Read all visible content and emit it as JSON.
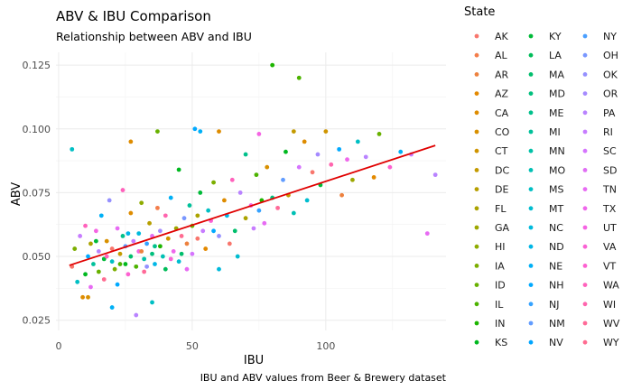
{
  "chart_data": {
    "type": "scatter",
    "title": "ABV & IBU Comparison",
    "subtitle": "Relationship between ABV and IBU",
    "xlabel": "IBU",
    "ylabel": "ABV",
    "caption": "IBU and ABV values from Beer & Brewery dataset",
    "xlim": [
      -1,
      145
    ],
    "ylim": [
      0.021,
      0.13
    ],
    "x_ticks": [
      0,
      50,
      100
    ],
    "y_ticks": [
      0.025,
      0.05,
      0.075,
      0.1,
      0.125
    ],
    "y_tick_labels": [
      "0.025",
      "0.050",
      "0.075",
      "0.100",
      "0.125"
    ],
    "grid": true,
    "legend": {
      "title": "State",
      "placement": "right",
      "entries": [
        {
          "name": "AK",
          "color": "#F8766D"
        },
        {
          "name": "AL",
          "color": "#F47D4A"
        },
        {
          "name": "AR",
          "color": "#ED813E"
        },
        {
          "name": "AZ",
          "color": "#E38900"
        },
        {
          "name": "CA",
          "color": "#DE8C00"
        },
        {
          "name": "CO",
          "color": "#D89000"
        },
        {
          "name": "CT",
          "color": "#CF9400"
        },
        {
          "name": "DC",
          "color": "#C49A00"
        },
        {
          "name": "DE",
          "color": "#B79F00"
        },
        {
          "name": "FL",
          "color": "#ABA300"
        },
        {
          "name": "GA",
          "color": "#9DA700"
        },
        {
          "name": "HI",
          "color": "#8EAB00"
        },
        {
          "name": "IA",
          "color": "#7CAE00"
        },
        {
          "name": "ID",
          "color": "#68B100"
        },
        {
          "name": "IL",
          "color": "#4DB300"
        },
        {
          "name": "IN",
          "color": "#1DB500"
        },
        {
          "name": "KS",
          "color": "#00B81F"
        },
        {
          "name": "KY",
          "color": "#00BA38"
        },
        {
          "name": "LA",
          "color": "#00BC59"
        },
        {
          "name": "MA",
          "color": "#00BE6C"
        },
        {
          "name": "MD",
          "color": "#00BF7D"
        },
        {
          "name": "ME",
          "color": "#00C08B"
        },
        {
          "name": "MI",
          "color": "#00C19A"
        },
        {
          "name": "MN",
          "color": "#00C1A7"
        },
        {
          "name": "MO",
          "color": "#00C0B4"
        },
        {
          "name": "MS",
          "color": "#00BFC4"
        },
        {
          "name": "MT",
          "color": "#00BDD0"
        },
        {
          "name": "NC",
          "color": "#00BADC"
        },
        {
          "name": "ND",
          "color": "#00B6E6"
        },
        {
          "name": "NE",
          "color": "#00B0F6"
        },
        {
          "name": "NH",
          "color": "#00A9FF"
        },
        {
          "name": "NJ",
          "color": "#35A2FF"
        },
        {
          "name": "NM",
          "color": "#619CFF"
        },
        {
          "name": "NV",
          "color": "#00A5FF"
        },
        {
          "name": "NY",
          "color": "#4A9FFF"
        },
        {
          "name": "OH",
          "color": "#7997FF"
        },
        {
          "name": "OK",
          "color": "#9590FF"
        },
        {
          "name": "OR",
          "color": "#A58AFF"
        },
        {
          "name": "PA",
          "color": "#B983FF"
        },
        {
          "name": "RI",
          "color": "#C77CFF"
        },
        {
          "name": "SC",
          "color": "#D575FE"
        },
        {
          "name": "SD",
          "color": "#E06EF4"
        },
        {
          "name": "TN",
          "color": "#E76BF3"
        },
        {
          "name": "TX",
          "color": "#EF67EB"
        },
        {
          "name": "UT",
          "color": "#F564E3"
        },
        {
          "name": "VA",
          "color": "#FA62D4"
        },
        {
          "name": "VT",
          "color": "#FD61D1"
        },
        {
          "name": "WA",
          "color": "#FF62BC"
        },
        {
          "name": "WI",
          "color": "#FF65AE"
        },
        {
          "name": "WV",
          "color": "#FF6A98"
        },
        {
          "name": "WY",
          "color": "#FF6C91"
        }
      ]
    },
    "regression": {
      "color": "#E00000",
      "x": [
        4,
        141
      ],
      "y": [
        0.0465,
        0.0935
      ]
    },
    "points": [
      [
        5,
        0.046,
        "#F8766D"
      ],
      [
        6,
        0.053,
        "#7CAE00"
      ],
      [
        7,
        0.04,
        "#00BFC4"
      ],
      [
        8,
        0.058,
        "#C77CFF"
      ],
      [
        9,
        0.034,
        "#DE8C00"
      ],
      [
        10,
        0.043,
        "#00B81F"
      ],
      [
        10,
        0.062,
        "#FF62BC"
      ],
      [
        11,
        0.05,
        "#00A9FF"
      ],
      [
        12,
        0.055,
        "#ABA300"
      ],
      [
        12,
        0.038,
        "#E76BF3"
      ],
      [
        13,
        0.047,
        "#00C19A"
      ],
      [
        14,
        0.06,
        "#F564E3"
      ],
      [
        15,
        0.044,
        "#68B100"
      ],
      [
        15,
        0.052,
        "#B983FF"
      ],
      [
        16,
        0.066,
        "#00B0F6"
      ],
      [
        17,
        0.041,
        "#FF6C91"
      ],
      [
        17,
        0.049,
        "#00BA38"
      ],
      [
        18,
        0.056,
        "#D89000"
      ],
      [
        19,
        0.072,
        "#9590FF"
      ],
      [
        20,
        0.048,
        "#00BFC4"
      ],
      [
        20,
        0.053,
        "#F8766D"
      ],
      [
        21,
        0.045,
        "#7CAE00"
      ],
      [
        22,
        0.061,
        "#E76BF3"
      ],
      [
        22,
        0.039,
        "#00A9FF"
      ],
      [
        23,
        0.051,
        "#C49A00"
      ],
      [
        24,
        0.058,
        "#00C08B"
      ],
      [
        24,
        0.076,
        "#FF62BC"
      ],
      [
        25,
        0.047,
        "#00B81F"
      ],
      [
        25,
        0.054,
        "#619CFF"
      ],
      [
        26,
        0.043,
        "#FD61D1"
      ],
      [
        27,
        0.05,
        "#00BE6C"
      ],
      [
        27,
        0.067,
        "#DE8C00"
      ],
      [
        28,
        0.056,
        "#C77CFF"
      ],
      [
        29,
        0.046,
        "#4DB300"
      ],
      [
        30,
        0.059,
        "#00BADC"
      ],
      [
        30,
        0.052,
        "#F564E3"
      ],
      [
        31,
        0.071,
        "#8EAB00"
      ],
      [
        32,
        0.049,
        "#00C1A7"
      ],
      [
        32,
        0.044,
        "#FF6A98"
      ],
      [
        33,
        0.055,
        "#35A2FF"
      ],
      [
        34,
        0.063,
        "#B79F00"
      ],
      [
        35,
        0.051,
        "#00BF7D"
      ],
      [
        35,
        0.058,
        "#E06EF4"
      ],
      [
        36,
        0.047,
        "#00B6E6"
      ],
      [
        37,
        0.069,
        "#F47D4A"
      ],
      [
        38,
        0.054,
        "#1DB500"
      ],
      [
        38,
        0.06,
        "#A58AFF"
      ],
      [
        39,
        0.05,
        "#00C0B4"
      ],
      [
        40,
        0.066,
        "#FF65AE"
      ],
      [
        40,
        0.045,
        "#00BC59"
      ],
      [
        41,
        0.057,
        "#CF9400"
      ],
      [
        42,
        0.073,
        "#00B0F6"
      ],
      [
        43,
        0.052,
        "#EF67EB"
      ],
      [
        44,
        0.061,
        "#9DA700"
      ],
      [
        45,
        0.048,
        "#00BDD0"
      ],
      [
        45,
        0.084,
        "#00B81F"
      ],
      [
        46,
        0.058,
        "#FF6C91"
      ],
      [
        47,
        0.065,
        "#7997FF"
      ],
      [
        48,
        0.055,
        "#ED813E"
      ],
      [
        49,
        0.07,
        "#00C19A"
      ],
      [
        50,
        0.051,
        "#D575FE"
      ],
      [
        50,
        0.062,
        "#68B100"
      ],
      [
        51,
        0.1,
        "#00A9FF"
      ],
      [
        52,
        0.057,
        "#F8766D"
      ],
      [
        53,
        0.075,
        "#00BA38"
      ],
      [
        54,
        0.06,
        "#C77CFF"
      ],
      [
        55,
        0.053,
        "#E38900"
      ],
      [
        56,
        0.068,
        "#00BFC4"
      ],
      [
        57,
        0.064,
        "#FA62D4"
      ],
      [
        58,
        0.079,
        "#7CAE00"
      ],
      [
        60,
        0.045,
        "#00BADC"
      ],
      [
        60,
        0.058,
        "#9590FF"
      ],
      [
        62,
        0.072,
        "#DE8C00"
      ],
      [
        63,
        0.066,
        "#00B6E6"
      ],
      [
        65,
        0.08,
        "#FF62BC"
      ],
      [
        66,
        0.06,
        "#00BE6C"
      ],
      [
        68,
        0.075,
        "#B983FF"
      ],
      [
        70,
        0.065,
        "#ABA300"
      ],
      [
        70,
        0.09,
        "#00C08B"
      ],
      [
        72,
        0.07,
        "#F564E3"
      ],
      [
        74,
        0.082,
        "#4DB300"
      ],
      [
        75,
        0.068,
        "#35A2FF"
      ],
      [
        77,
        0.063,
        "#E76BF3"
      ],
      [
        78,
        0.085,
        "#D89000"
      ],
      [
        80,
        0.073,
        "#00BF7D"
      ],
      [
        80,
        0.125,
        "#1DB500"
      ],
      [
        82,
        0.069,
        "#FF6A98"
      ],
      [
        84,
        0.08,
        "#619CFF"
      ],
      [
        85,
        0.091,
        "#00B81F"
      ],
      [
        86,
        0.074,
        "#C49A00"
      ],
      [
        88,
        0.067,
        "#00C0B4"
      ],
      [
        90,
        0.12,
        "#4DB300"
      ],
      [
        90,
        0.085,
        "#D575FE"
      ],
      [
        92,
        0.095,
        "#DE8C00"
      ],
      [
        93,
        0.072,
        "#00BDD0"
      ],
      [
        95,
        0.083,
        "#F8766D"
      ],
      [
        97,
        0.09,
        "#A58AFF"
      ],
      [
        98,
        0.078,
        "#00BA38"
      ],
      [
        100,
        0.099,
        "#CF9400"
      ],
      [
        102,
        0.086,
        "#FF65AE"
      ],
      [
        105,
        0.092,
        "#00A9FF"
      ],
      [
        106,
        0.074,
        "#ED813E"
      ],
      [
        108,
        0.088,
        "#EF67EB"
      ],
      [
        110,
        0.08,
        "#9DA700"
      ],
      [
        112,
        0.095,
        "#00BFC4"
      ],
      [
        115,
        0.089,
        "#B983FF"
      ],
      [
        118,
        0.081,
        "#E38900"
      ],
      [
        120,
        0.098,
        "#68B100"
      ],
      [
        124,
        0.085,
        "#FD61D1"
      ],
      [
        128,
        0.091,
        "#00B0F6"
      ],
      [
        132,
        0.09,
        "#C77CFF"
      ],
      [
        138,
        0.059,
        "#E76BF3"
      ],
      [
        141,
        0.082,
        "#B983FF"
      ],
      [
        5,
        0.092,
        "#00BFC4"
      ],
      [
        27,
        0.095,
        "#DE8C00"
      ],
      [
        37,
        0.099,
        "#68B100"
      ],
      [
        53,
        0.099,
        "#00B0F6"
      ],
      [
        60,
        0.099,
        "#DE8C00"
      ],
      [
        75,
        0.098,
        "#F564E3"
      ],
      [
        88,
        0.099,
        "#C49A00"
      ],
      [
        20,
        0.03,
        "#00B0F6"
      ],
      [
        29,
        0.027,
        "#B983FF"
      ],
      [
        35,
        0.032,
        "#00BFC4"
      ],
      [
        11,
        0.034,
        "#D89000"
      ],
      [
        14,
        0.056,
        "#00BA38"
      ],
      [
        18,
        0.05,
        "#FF62BC"
      ],
      [
        23,
        0.047,
        "#4DB300"
      ],
      [
        26,
        0.059,
        "#00B6E6"
      ],
      [
        31,
        0.052,
        "#ED813E"
      ],
      [
        33,
        0.046,
        "#9590FF"
      ],
      [
        36,
        0.054,
        "#00C08B"
      ],
      [
        42,
        0.049,
        "#FA62D4"
      ],
      [
        46,
        0.051,
        "#00BE6C"
      ],
      [
        48,
        0.045,
        "#E76BF3"
      ],
      [
        52,
        0.066,
        "#ABA300"
      ],
      [
        58,
        0.06,
        "#00A9FF"
      ],
      [
        64,
        0.055,
        "#F8766D"
      ],
      [
        67,
        0.05,
        "#00BDD0"
      ],
      [
        73,
        0.061,
        "#C77CFF"
      ],
      [
        76,
        0.072,
        "#1DB500"
      ]
    ]
  }
}
